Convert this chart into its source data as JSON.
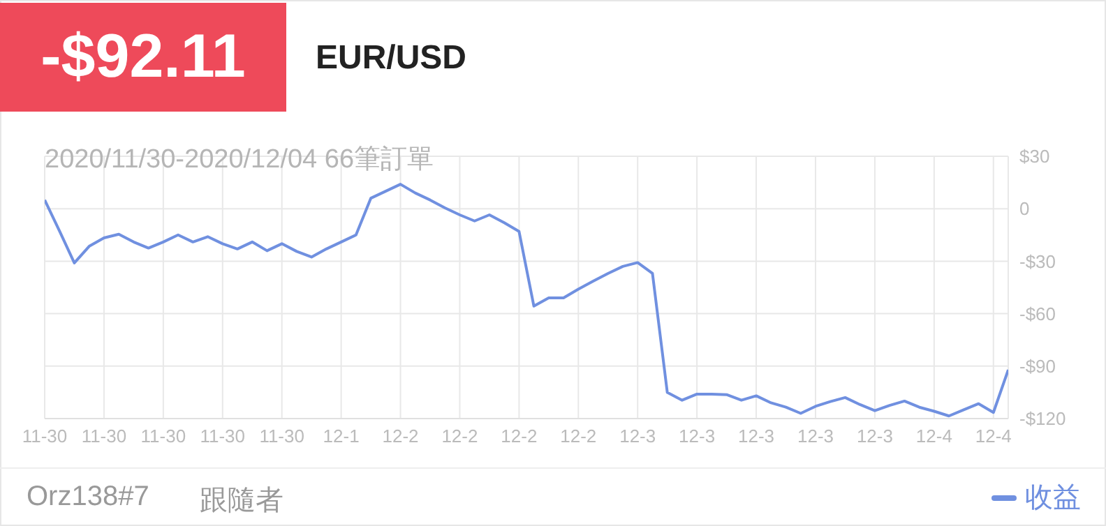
{
  "chart_data": {
    "type": "line",
    "title": "EUR/USD",
    "subtitle": "2020/11/30-2020/12/04 66筆訂單",
    "annotations": [
      "-$92.11",
      "Orz138#7",
      "跟隨者"
    ],
    "categories": [
      "11-30",
      null,
      null,
      null,
      "11-30",
      null,
      null,
      null,
      "11-30",
      null,
      null,
      null,
      "11-30",
      null,
      null,
      null,
      "11-30",
      null,
      null,
      null,
      "12-1",
      null,
      null,
      null,
      "12-2",
      null,
      null,
      null,
      "12-2",
      null,
      null,
      null,
      "12-2",
      null,
      null,
      null,
      "12-2",
      null,
      null,
      null,
      "12-3",
      null,
      null,
      null,
      "12-3",
      null,
      null,
      null,
      "12-3",
      null,
      null,
      null,
      "12-3",
      null,
      null,
      null,
      "12-3",
      null,
      null,
      null,
      "12-4",
      null,
      null,
      null,
      "12-4",
      null
    ],
    "series": [
      {
        "name": "收益",
        "color": "#7090e0",
        "values": [
          5,
          -12.7,
          -31,
          -21.5,
          -16.7,
          -14.6,
          -19,
          -22.5,
          -19,
          -15,
          -19,
          -16,
          -20,
          -23,
          -19,
          -24,
          -20,
          -24.4,
          -27.6,
          -23,
          -19,
          -15,
          6,
          10,
          14,
          9,
          5,
          0.5,
          -3.5,
          -7,
          -3.5,
          -8,
          -13,
          -55.7,
          -51,
          -51,
          -46,
          -41.4,
          -37,
          -33,
          -30.8,
          -37,
          -105,
          -109.5,
          -106,
          -106,
          -106.3,
          -109.5,
          -107,
          -111,
          -113.5,
          -117,
          -113,
          -110.3,
          -108,
          -112,
          -115.5,
          -112.5,
          -110,
          -113.5,
          -115.8,
          -118.5,
          -115,
          -111.5,
          -116.5,
          -92.11
        ]
      }
    ],
    "ylim": [
      -120,
      30
    ],
    "yticks": [
      {
        "value": 30,
        "label": "$30"
      },
      0,
      {
        "value": -30,
        "label": "-$30"
      },
      {
        "value": -60,
        "label": "-$60"
      },
      {
        "value": -90,
        "label": "-$90"
      },
      {
        "value": -120,
        "label": "-$120"
      }
    ],
    "grid": true,
    "legend": "bottom right",
    "marker": "none",
    "line_style": "solid"
  }
}
